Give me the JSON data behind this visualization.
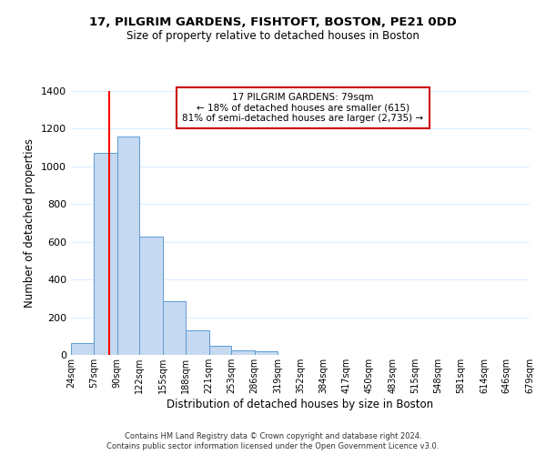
{
  "title1": "17, PILGRIM GARDENS, FISHTOFT, BOSTON, PE21 0DD",
  "title2": "Size of property relative to detached houses in Boston",
  "xlabel": "Distribution of detached houses by size in Boston",
  "ylabel": "Number of detached properties",
  "bin_edges": [
    24,
    57,
    90,
    122,
    155,
    188,
    221,
    253,
    286,
    319,
    352,
    384,
    417,
    450,
    483,
    515,
    548,
    581,
    614,
    646,
    679
  ],
  "bar_heights": [
    65,
    1070,
    1160,
    630,
    285,
    130,
    48,
    22,
    20,
    0,
    0,
    0,
    0,
    0,
    0,
    0,
    0,
    0,
    0,
    0
  ],
  "bar_color": "#c5d9f1",
  "bar_edge_color": "#5b9bd5",
  "property_value": 79,
  "red_line_color": "#ff0000",
  "annotation_line1": "17 PILGRIM GARDENS: 79sqm",
  "annotation_line2": "← 18% of detached houses are smaller (615)",
  "annotation_line3": "81% of semi-detached houses are larger (2,735) →",
  "annotation_box_color": "#ffffff",
  "annotation_box_edge": "#cc0000",
  "ylim": [
    0,
    1400
  ],
  "yticks": [
    0,
    200,
    400,
    600,
    800,
    1000,
    1200,
    1400
  ],
  "footer1": "Contains HM Land Registry data © Crown copyright and database right 2024.",
  "footer2": "Contains public sector information licensed under the Open Government Licence v3.0.",
  "background_color": "#ffffff",
  "grid_color": "#ddeeff",
  "tick_labels": [
    "24sqm",
    "57sqm",
    "90sqm",
    "122sqm",
    "155sqm",
    "188sqm",
    "221sqm",
    "253sqm",
    "286sqm",
    "319sqm",
    "352sqm",
    "384sqm",
    "417sqm",
    "450sqm",
    "483sqm",
    "515sqm",
    "548sqm",
    "581sqm",
    "614sqm",
    "646sqm",
    "679sqm"
  ]
}
